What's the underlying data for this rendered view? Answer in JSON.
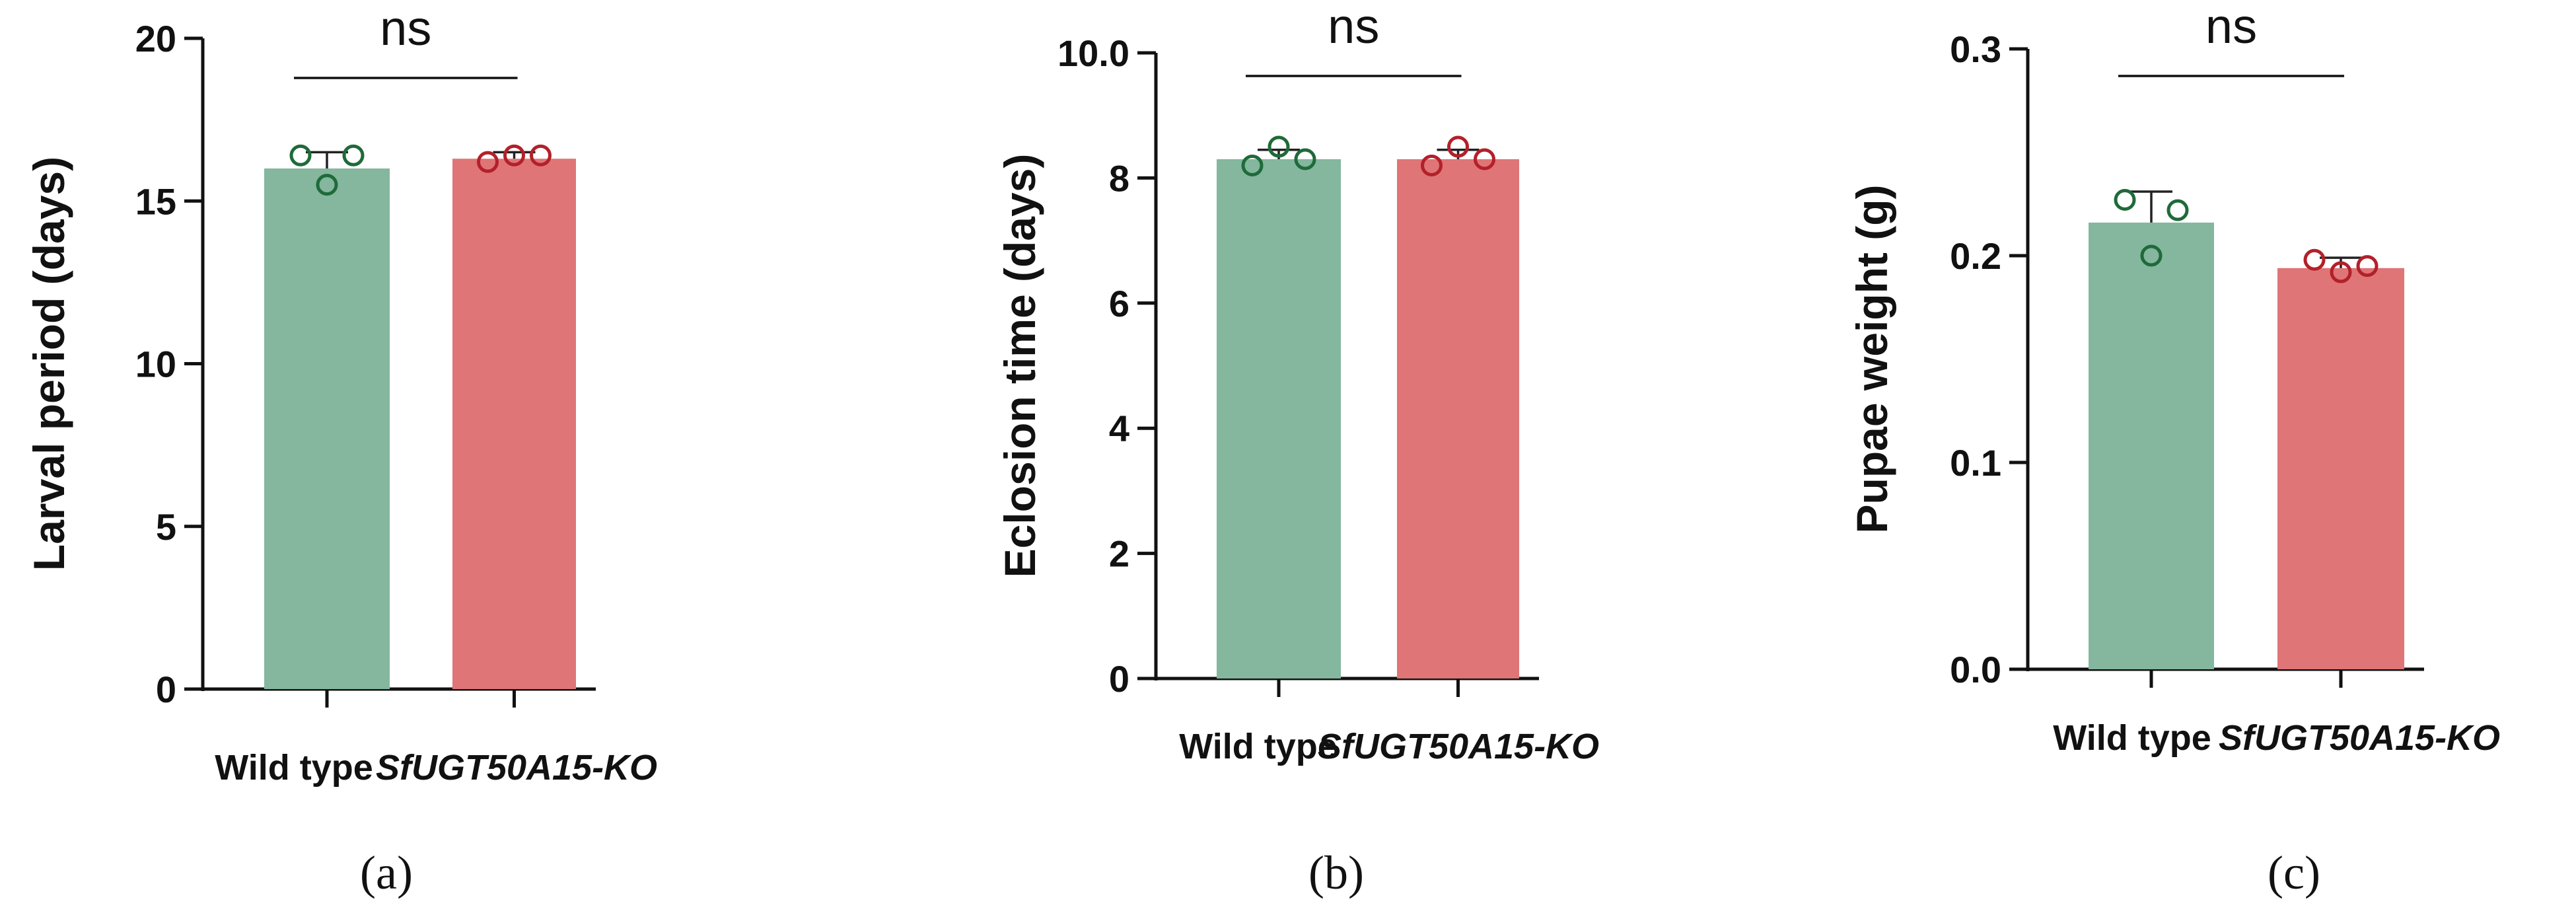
{
  "chart_data": [
    {
      "type": "bar",
      "panel_label": "(a)",
      "categories": [
        "Wild type",
        "SfUGT50A15-KO"
      ],
      "category_italic": [
        false,
        true
      ],
      "ylabel": "Larval period (days)",
      "ylim": [
        0,
        20
      ],
      "yticks": [
        0,
        5,
        10,
        15,
        20
      ],
      "ytick_labels": [
        "0",
        "5",
        "10",
        "15",
        "20"
      ],
      "series": [
        {
          "values": [
            16.0,
            16.3
          ],
          "errors": [
            0.5,
            0.2
          ]
        }
      ],
      "points": [
        [
          16.4,
          15.5,
          16.4
        ],
        [
          16.2,
          16.4,
          16.4
        ]
      ],
      "colors": [
        "#84b79e",
        "#df7576"
      ],
      "point_colors": [
        "#1f6a3a",
        "#b3202a"
      ],
      "significance": "ns"
    },
    {
      "type": "bar",
      "panel_label": "(b)",
      "categories": [
        "Wild type",
        "SfUGT50A15-KO"
      ],
      "category_italic": [
        false,
        true
      ],
      "ylabel": "Eclosion time (days)",
      "ylim": [
        0,
        10
      ],
      "yticks": [
        0,
        2,
        4,
        6,
        8,
        10
      ],
      "ytick_labels": [
        "0",
        "2",
        "4",
        "6",
        "8",
        "10.0"
      ],
      "series": [
        {
          "values": [
            8.3,
            8.3
          ],
          "errors": [
            0.15,
            0.15
          ]
        }
      ],
      "points": [
        [
          8.2,
          8.5,
          8.3
        ],
        [
          8.2,
          8.5,
          8.3
        ]
      ],
      "colors": [
        "#84b79e",
        "#df7576"
      ],
      "point_colors": [
        "#1f6a3a",
        "#b3202a"
      ],
      "significance": "ns"
    },
    {
      "type": "bar",
      "panel_label": "(c)",
      "categories": [
        "Wild type",
        "SfUGT50A15-KO"
      ],
      "category_italic": [
        false,
        true
      ],
      "ylabel": "Pupae weight (g)",
      "ylim": [
        0,
        0.3
      ],
      "yticks": [
        0,
        0.1,
        0.2,
        0.3
      ],
      "ytick_labels": [
        "0.0",
        "0.1",
        "0.2",
        "0.3"
      ],
      "series": [
        {
          "values": [
            0.216,
            0.194
          ],
          "errors": [
            0.015,
            0.005
          ]
        }
      ],
      "points": [
        [
          0.227,
          0.2,
          0.222
        ],
        [
          0.198,
          0.192,
          0.195
        ]
      ],
      "colors": [
        "#84b79e",
        "#df7576"
      ],
      "point_colors": [
        "#1f6a3a",
        "#b3202a"
      ],
      "significance": "ns"
    }
  ]
}
